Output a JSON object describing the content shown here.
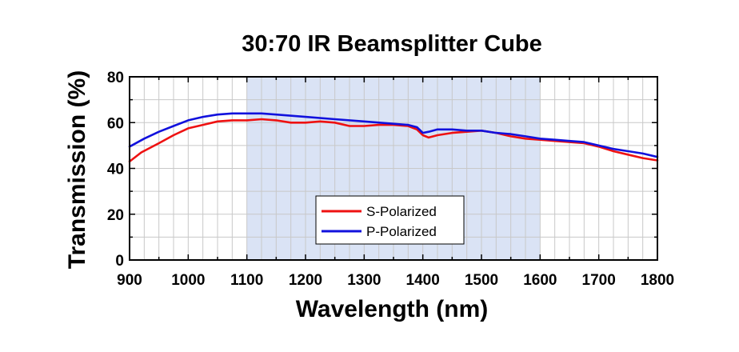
{
  "chart_data": {
    "type": "line",
    "title": "30:70 IR Beamsplitter Cube",
    "xlabel": "Wavelength (nm)",
    "ylabel": "Transmission (%)",
    "xlim": [
      900,
      1800
    ],
    "ylim": [
      0,
      80
    ],
    "xticks": [
      900,
      1000,
      1100,
      1200,
      1300,
      1400,
      1500,
      1600,
      1700,
      1800
    ],
    "yticks": [
      0,
      20,
      40,
      60,
      80
    ],
    "grid": true,
    "highlight_band": {
      "x_start": 1100,
      "x_end": 1600,
      "color": "#dae3f5"
    },
    "legend_position": "lower-center",
    "series": [
      {
        "name": "S-Polarized",
        "color": "#ee1111",
        "x": [
          900,
          920,
          950,
          975,
          1000,
          1025,
          1050,
          1075,
          1100,
          1125,
          1150,
          1175,
          1200,
          1225,
          1250,
          1275,
          1300,
          1325,
          1350,
          1375,
          1390,
          1400,
          1410,
          1425,
          1450,
          1475,
          1500,
          1525,
          1550,
          1575,
          1600,
          1625,
          1650,
          1675,
          1700,
          1725,
          1750,
          1775,
          1800
        ],
        "values": [
          43,
          47,
          51,
          54.5,
          57.5,
          59,
          60.5,
          61,
          61,
          61.5,
          61,
          60,
          60,
          60.5,
          60,
          58.5,
          58.5,
          59,
          59,
          58.5,
          57,
          54.5,
          53.5,
          54.5,
          55.5,
          56,
          56.5,
          55.5,
          54,
          53,
          52.5,
          52,
          51.5,
          51,
          49.5,
          47.5,
          46,
          44.5,
          43.5
        ]
      },
      {
        "name": "P-Polarized",
        "color": "#1111dd",
        "x": [
          900,
          925,
          950,
          975,
          1000,
          1025,
          1050,
          1075,
          1100,
          1125,
          1150,
          1200,
          1250,
          1300,
          1350,
          1375,
          1390,
          1400,
          1410,
          1425,
          1450,
          1475,
          1500,
          1525,
          1550,
          1575,
          1600,
          1625,
          1650,
          1675,
          1700,
          1725,
          1750,
          1775,
          1800
        ],
        "values": [
          49.5,
          53,
          56,
          58.5,
          61,
          62.5,
          63.5,
          64,
          64,
          64,
          63.5,
          62.5,
          61.5,
          60.5,
          59.5,
          59,
          58,
          55.5,
          56,
          57,
          57,
          56.5,
          56.5,
          55.5,
          55,
          54,
          53,
          52.5,
          52,
          51.5,
          50,
          48.5,
          47.5,
          46.5,
          45
        ]
      }
    ]
  }
}
